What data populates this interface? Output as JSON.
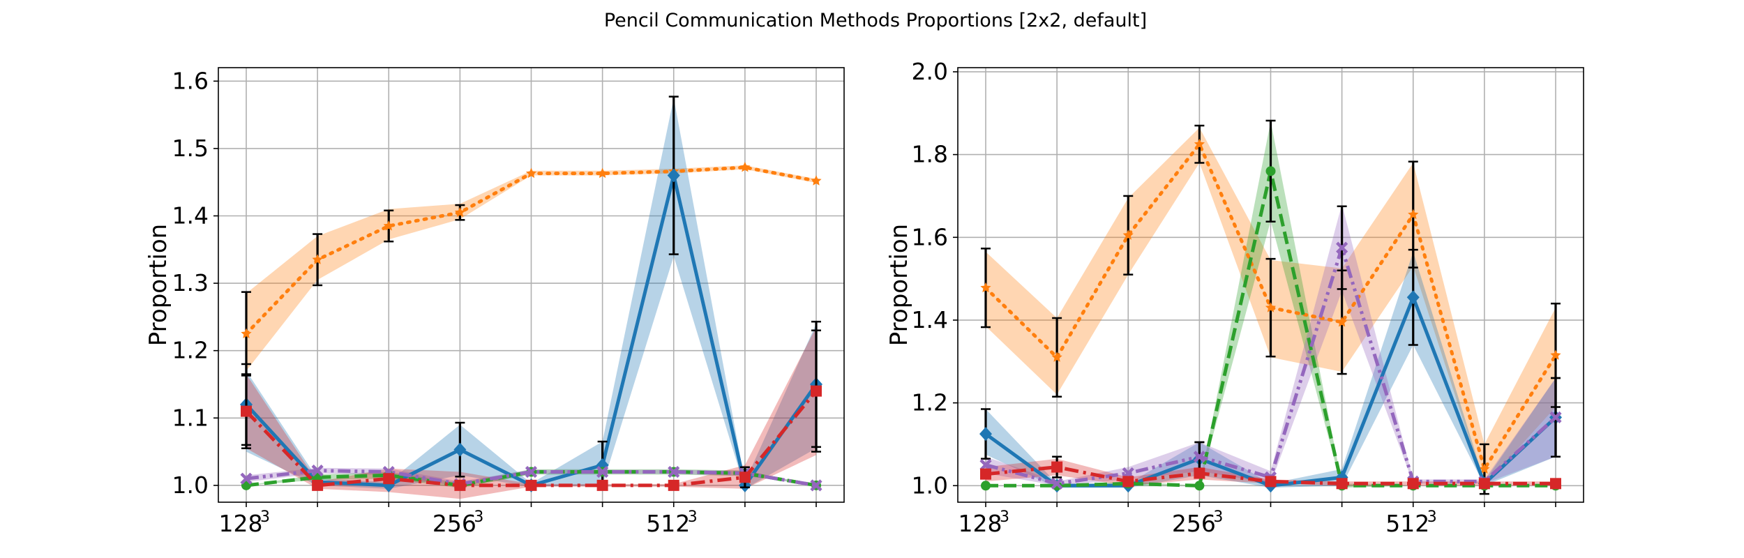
{
  "figure_title": "Pencil Communication Methods Proportions [2x2, default]",
  "colors": {
    "blue": "#1f77b4",
    "orange": "#ff7f0e",
    "green": "#2ca02c",
    "red": "#d62728",
    "purple": "#9467bd",
    "grid": "#b0b0b0",
    "errorbar": "#000000"
  },
  "chart_data": [
    {
      "type": "line",
      "title": "",
      "xlabel": "",
      "ylabel": "Proportion",
      "x": [
        0,
        1,
        2,
        3,
        4,
        5,
        6,
        7,
        8
      ],
      "x_tick_labels": [
        {
          "x": 0,
          "base": "128",
          "exp": "3"
        },
        {
          "x": 3,
          "base": "256",
          "exp": "3"
        },
        {
          "x": 6,
          "base": "512",
          "exp": "3"
        }
      ],
      "ylim": [
        0.975,
        1.62
      ],
      "yticks": [
        "1.0",
        "1.1",
        "1.2",
        "1.3",
        "1.4",
        "1.5",
        "1.6"
      ],
      "grid": true,
      "series": [
        {
          "color": "#ff7f0e",
          "style": "dotted",
          "marker": "star",
          "values": [
            1.225,
            1.335,
            1.385,
            1.405,
            1.463,
            1.463,
            1.466,
            1.472,
            1.452
          ],
          "band": [
            [
              1.17,
              1.285
            ],
            [
              1.305,
              1.37
            ],
            [
              1.365,
              1.41
            ],
            [
              1.395,
              1.418
            ],
            [
              1.46,
              1.467
            ],
            [
              1.46,
              1.467
            ],
            [
              1.463,
              1.47
            ],
            [
              1.469,
              1.475
            ],
            [
              1.449,
              1.455
            ]
          ],
          "err": [
            0.062,
            0.038,
            0.023,
            0.011,
            0.0,
            0.0,
            0.0,
            0.0,
            0.0
          ]
        },
        {
          "color": "#1f77b4",
          "style": "solid",
          "marker": "diamond",
          "values": [
            1.12,
            1.005,
            1.0,
            1.053,
            1.0,
            1.03,
            1.46,
            1.0,
            1.15
          ],
          "band": [
            [
              1.05,
              1.17
            ],
            [
              1.0,
              1.01
            ],
            [
              0.995,
              1.005
            ],
            [
              1.015,
              1.09
            ],
            [
              0.998,
              1.003
            ],
            [
              1.0,
              1.065
            ],
            [
              1.34,
              1.575
            ],
            [
              0.995,
              1.005
            ],
            [
              1.055,
              1.24
            ]
          ],
          "err": [
            0.06,
            0.0,
            0.0,
            0.04,
            0.0,
            0.035,
            0.117,
            0.0,
            0.093
          ]
        },
        {
          "color": "#2ca02c",
          "style": "dashed",
          "marker": "circle",
          "values": [
            1.0,
            1.012,
            1.015,
            1.0,
            1.02,
            1.02,
            1.02,
            1.018,
            1.0
          ],
          "band": [
            [
              1.0,
              1.0
            ],
            [
              1.008,
              1.016
            ],
            [
              1.01,
              1.02
            ],
            [
              0.996,
              1.004
            ],
            [
              1.016,
              1.024
            ],
            [
              1.016,
              1.024
            ],
            [
              1.016,
              1.024
            ],
            [
              1.014,
              1.022
            ],
            [
              1.0,
              1.0
            ]
          ],
          "err": [
            0,
            0,
            0,
            0,
            0,
            0,
            0,
            0,
            0
          ]
        },
        {
          "color": "#9467bd",
          "style": "dashdotdot",
          "marker": "x",
          "values": [
            1.01,
            1.022,
            1.02,
            1.002,
            1.02,
            1.02,
            1.02,
            1.018,
            1.0
          ],
          "band": [
            [
              1.005,
              1.015
            ],
            [
              1.018,
              1.026
            ],
            [
              1.015,
              1.025
            ],
            [
              0.998,
              1.006
            ],
            [
              1.017,
              1.023
            ],
            [
              1.017,
              1.023
            ],
            [
              1.017,
              1.023
            ],
            [
              1.014,
              1.022
            ],
            [
              1.0,
              1.0
            ]
          ],
          "err": [
            0,
            0,
            0,
            0,
            0,
            0,
            0,
            0,
            0
          ]
        },
        {
          "color": "#d62728",
          "style": "dashdot",
          "marker": "square",
          "values": [
            1.11,
            1.0,
            1.01,
            1.0,
            1.0,
            1.0,
            1.0,
            1.012,
            1.14
          ],
          "band": [
            [
              1.055,
              1.165
            ],
            [
              0.995,
              1.005
            ],
            [
              0.99,
              1.025
            ],
            [
              0.98,
              1.02
            ],
            [
              0.998,
              1.002
            ],
            [
              0.998,
              1.002
            ],
            [
              0.998,
              1.002
            ],
            [
              0.995,
              1.03
            ],
            [
              1.045,
              1.235
            ]
          ],
          "err": [
            0.055,
            0.0,
            0.0,
            0.0,
            0.0,
            0.0,
            0.0,
            0.015,
            0.09
          ]
        }
      ]
    },
    {
      "type": "line",
      "title": "",
      "xlabel": "",
      "ylabel": "Proportion",
      "x": [
        0,
        1,
        2,
        3,
        4,
        5,
        6,
        7,
        8
      ],
      "x_tick_labels": [
        {
          "x": 0,
          "base": "128",
          "exp": "3"
        },
        {
          "x": 3,
          "base": "256",
          "exp": "3"
        },
        {
          "x": 6,
          "base": "512",
          "exp": "3"
        }
      ],
      "ylim": [
        0.96,
        2.01
      ],
      "yticks": [
        "1.0",
        "1.2",
        "1.4",
        "1.6",
        "1.8",
        "2.0"
      ],
      "grid": true,
      "series": [
        {
          "color": "#ff7f0e",
          "style": "dotted",
          "marker": "star",
          "values": [
            1.478,
            1.31,
            1.605,
            1.825,
            1.43,
            1.395,
            1.655,
            1.04,
            1.315
          ],
          "band": [
            [
              1.385,
              1.565
            ],
            [
              1.22,
              1.405
            ],
            [
              1.51,
              1.695
            ],
            [
              1.78,
              1.865
            ],
            [
              1.31,
              1.545
            ],
            [
              1.275,
              1.525
            ],
            [
              1.53,
              1.78
            ],
            [
              1.0,
              1.1
            ],
            [
              1.19,
              1.43
            ]
          ],
          "err": [
            0.095,
            0.095,
            0.095,
            0.045,
            0.118,
            0.125,
            0.128,
            0.06,
            0.125
          ]
        },
        {
          "color": "#1f77b4",
          "style": "solid",
          "marker": "diamond",
          "values": [
            1.125,
            1.0,
            1.0,
            1.065,
            1.0,
            1.02,
            1.455,
            1.005,
            1.165
          ],
          "band": [
            [
              1.075,
              1.185
            ],
            [
              0.995,
              1.005
            ],
            [
              0.995,
              1.005
            ],
            [
              1.025,
              1.105
            ],
            [
              0.995,
              1.005
            ],
            [
              1.0,
              1.04
            ],
            [
              1.34,
              1.565
            ],
            [
              1.0,
              1.01
            ],
            [
              1.07,
              1.26
            ]
          ],
          "err": [
            0.06,
            0.0,
            0.0,
            0.04,
            0.0,
            0.0,
            0.115,
            0.0,
            0.095
          ]
        },
        {
          "color": "#2ca02c",
          "style": "dashed",
          "marker": "circle",
          "values": [
            1.0,
            1.0,
            1.005,
            1.0,
            1.76,
            1.0,
            1.0,
            1.0,
            1.0
          ],
          "band": [
            [
              1.0,
              1.0
            ],
            [
              1.0,
              1.0
            ],
            [
              1.0,
              1.01
            ],
            [
              1.0,
              1.0
            ],
            [
              1.64,
              1.88
            ],
            [
              0.995,
              1.005
            ],
            [
              1.0,
              1.0
            ],
            [
              1.0,
              1.0
            ],
            [
              1.0,
              1.0
            ]
          ],
          "err": [
            0,
            0,
            0,
            0,
            0.122,
            0,
            0,
            0,
            0
          ]
        },
        {
          "color": "#9467bd",
          "style": "dashdotdot",
          "marker": "x",
          "values": [
            1.05,
            1.005,
            1.03,
            1.07,
            1.02,
            1.575,
            1.01,
            1.01,
            1.165
          ],
          "band": [
            [
              1.03,
              1.07
            ],
            [
              1.0,
              1.01
            ],
            [
              1.015,
              1.045
            ],
            [
              1.035,
              1.105
            ],
            [
              1.005,
              1.035
            ],
            [
              1.47,
              1.68
            ],
            [
              1.005,
              1.015
            ],
            [
              1.005,
              1.015
            ],
            [
              1.07,
              1.26
            ]
          ],
          "err": [
            0.0,
            0.0,
            0.0,
            0.035,
            0.0,
            0.1,
            0.0,
            0.0,
            0.095
          ]
        },
        {
          "color": "#d62728",
          "style": "dashdot",
          "marker": "square",
          "values": [
            1.028,
            1.045,
            1.01,
            1.03,
            1.01,
            1.005,
            1.005,
            1.005,
            1.005
          ],
          "band": [
            [
              1.01,
              1.045
            ],
            [
              1.025,
              1.065
            ],
            [
              1.0,
              1.02
            ],
            [
              1.015,
              1.045
            ],
            [
              1.005,
              1.015
            ],
            [
              1.0,
              1.01
            ],
            [
              1.0,
              1.01
            ],
            [
              1.0,
              1.01
            ],
            [
              1.0,
              1.01
            ]
          ],
          "err": [
            0.0,
            0.025,
            0.0,
            0.0,
            0.0,
            0.0,
            0.0,
            0.0,
            0.0
          ]
        }
      ]
    }
  ]
}
